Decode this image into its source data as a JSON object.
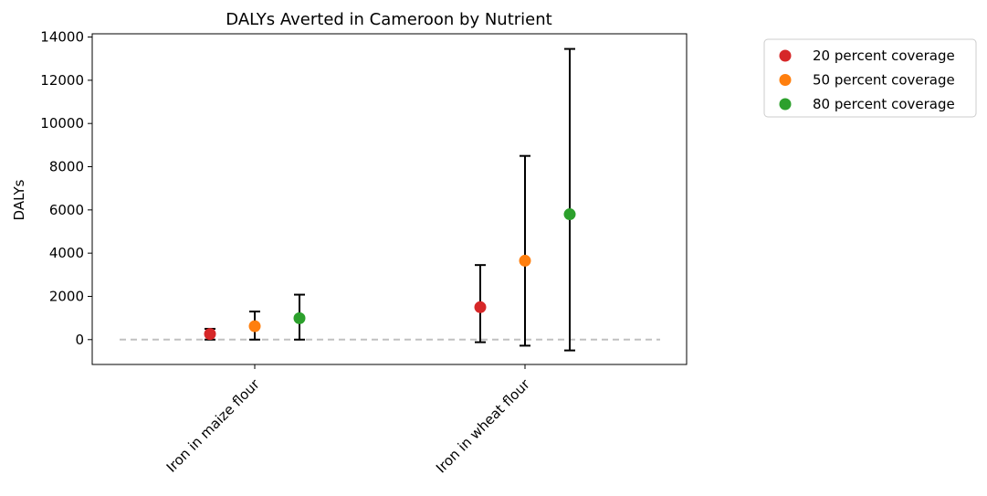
{
  "chart_data": {
    "type": "scatter",
    "title": "DALYs Averted in Cameroon by Nutrient",
    "xlabel": "",
    "ylabel": "DALYs",
    "categories": [
      "Iron in maize flour",
      "Iron in wheat flour"
    ],
    "ylim": [
      -1150,
      14150
    ],
    "yticks": [
      0,
      2000,
      4000,
      6000,
      8000,
      10000,
      12000,
      14000
    ],
    "grid": false,
    "legend_position": "outside-top-right",
    "zero_line": {
      "y": 0,
      "style": "dashed",
      "color": "#c0c0c0"
    },
    "series": [
      {
        "name": "20 percent coverage",
        "color": "#d62728",
        "values": [
          260,
          1500
        ],
        "lower": [
          0,
          -120
        ],
        "upper": [
          500,
          3450
        ]
      },
      {
        "name": "50 percent coverage",
        "color": "#ff7f0e",
        "values": [
          620,
          3650
        ],
        "lower": [
          0,
          -280
        ],
        "upper": [
          1300,
          8500
        ]
      },
      {
        "name": "80 percent coverage",
        "color": "#2ca02c",
        "values": [
          990,
          5800
        ],
        "lower": [
          0,
          -500
        ],
        "upper": [
          2080,
          13450
        ]
      }
    ]
  }
}
